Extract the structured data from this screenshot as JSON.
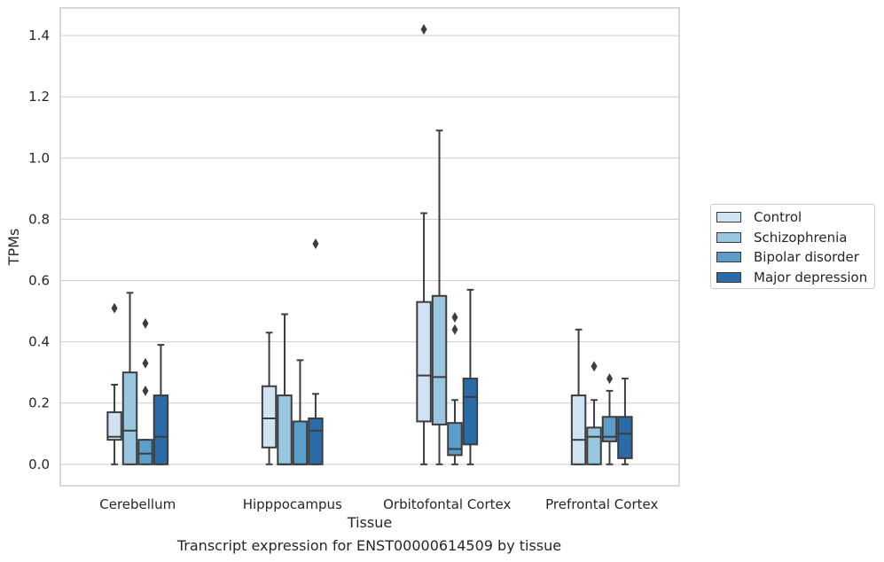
{
  "chart_data": {
    "type": "box",
    "title": "",
    "caption": "Transcript expression for ENST00000614509 by tissue",
    "xlabel": "Tissue",
    "ylabel": "TPMs",
    "ylim": [
      -0.07,
      1.49
    ],
    "yticks": [
      0.0,
      0.2,
      0.4,
      0.6,
      0.8,
      1.0,
      1.2,
      1.4
    ],
    "ytick_labels": [
      "0.0",
      "0.2",
      "0.4",
      "0.6",
      "0.8",
      "1.0",
      "1.2",
      "1.4"
    ],
    "grid": true,
    "legend_position": "right",
    "categories": [
      "Cerebellum",
      "Hipppocampus",
      "Orbitofontal Cortex",
      "Prefrontal Cortex"
    ],
    "series": [
      {
        "name": "Control",
        "color": "#d1e2f2",
        "boxes": [
          {
            "whislo": 0.0,
            "q1": 0.08,
            "med": 0.09,
            "q3": 0.17,
            "whishi": 0.26,
            "fliers": [
              0.51
            ]
          },
          {
            "whislo": 0.0,
            "q1": 0.055,
            "med": 0.15,
            "q3": 0.255,
            "whishi": 0.43,
            "fliers": []
          },
          {
            "whislo": 0.0,
            "q1": 0.14,
            "med": 0.29,
            "q3": 0.53,
            "whishi": 0.82,
            "fliers": [
              1.42
            ]
          },
          {
            "whislo": 0.0,
            "q1": 0.0,
            "med": 0.08,
            "q3": 0.225,
            "whishi": 0.44,
            "fliers": []
          }
        ]
      },
      {
        "name": "Schizophrenia",
        "color": "#9ac7e0",
        "boxes": [
          {
            "whislo": 0.0,
            "q1": 0.0,
            "med": 0.11,
            "q3": 0.3,
            "whishi": 0.56,
            "fliers": []
          },
          {
            "whislo": 0.0,
            "q1": 0.0,
            "med": 0.0,
            "q3": 0.225,
            "whishi": 0.49,
            "fliers": []
          },
          {
            "whislo": 0.0,
            "q1": 0.13,
            "med": 0.285,
            "q3": 0.55,
            "whishi": 1.09,
            "fliers": []
          },
          {
            "whislo": 0.0,
            "q1": 0.0,
            "med": 0.09,
            "q3": 0.12,
            "whishi": 0.21,
            "fliers": [
              0.32
            ]
          }
        ]
      },
      {
        "name": "Bipolar disorder",
        "color": "#5b9ec9",
        "boxes": [
          {
            "whislo": 0.0,
            "q1": 0.0,
            "med": 0.035,
            "q3": 0.08,
            "whishi": 0.08,
            "fliers": [
              0.24,
              0.33,
              0.46
            ]
          },
          {
            "whislo": 0.0,
            "q1": 0.0,
            "med": 0.0,
            "q3": 0.14,
            "whishi": 0.34,
            "fliers": []
          },
          {
            "whislo": 0.0,
            "q1": 0.03,
            "med": 0.05,
            "q3": 0.135,
            "whishi": 0.21,
            "fliers": [
              0.44,
              0.48
            ]
          },
          {
            "whislo": 0.0,
            "q1": 0.075,
            "med": 0.09,
            "q3": 0.155,
            "whishi": 0.24,
            "fliers": [
              0.28
            ]
          }
        ]
      },
      {
        "name": "Major depression",
        "color": "#2b6ca8",
        "boxes": [
          {
            "whislo": 0.0,
            "q1": 0.0,
            "med": 0.09,
            "q3": 0.225,
            "whishi": 0.39,
            "fliers": []
          },
          {
            "whislo": 0.0,
            "q1": 0.0,
            "med": 0.11,
            "q3": 0.15,
            "whishi": 0.23,
            "fliers": [
              0.72
            ]
          },
          {
            "whislo": 0.0,
            "q1": 0.065,
            "med": 0.22,
            "q3": 0.28,
            "whishi": 0.57,
            "fliers": []
          },
          {
            "whislo": 0.0,
            "q1": 0.02,
            "med": 0.1,
            "q3": 0.155,
            "whishi": 0.28,
            "fliers": []
          }
        ]
      }
    ]
  }
}
